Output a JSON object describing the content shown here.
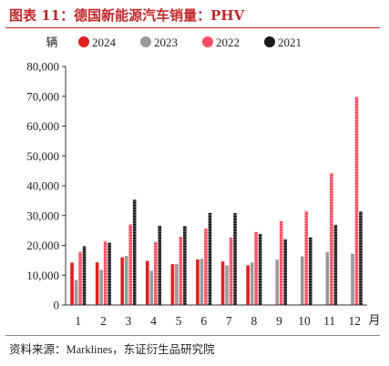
{
  "header": {
    "title": "图表 11：德国新能源汽车销量：PHV"
  },
  "footer": {
    "source": "资料来源：Marklines，东证衍生品研究院"
  },
  "chart_data": {
    "type": "bar",
    "ylabel": "辆",
    "xlabel": "月",
    "ylim": [
      0,
      80000
    ],
    "yticks": [
      0,
      10000,
      20000,
      30000,
      40000,
      50000,
      60000,
      70000,
      80000
    ],
    "ytick_labels": [
      "0",
      "10,000",
      "20,000",
      "30,000",
      "40,000",
      "50,000",
      "60,000",
      "70,000",
      "80,000"
    ],
    "categories": [
      "1",
      "2",
      "3",
      "4",
      "5",
      "6",
      "7",
      "8",
      "9",
      "10",
      "11",
      "12"
    ],
    "legend_position": "top",
    "grid": false,
    "series": [
      {
        "name": "2024",
        "color": "#e02020",
        "pattern": "solid",
        "values": [
          14200,
          14300,
          16000,
          14800,
          13700,
          15300,
          14600,
          13300,
          null,
          null,
          null,
          null
        ]
      },
      {
        "name": "2023",
        "color": "#9a9a9a",
        "pattern": "solid",
        "values": [
          8400,
          11800,
          16500,
          11500,
          13700,
          15500,
          13300,
          14200,
          15200,
          16300,
          17800,
          17200
        ]
      },
      {
        "name": "2022",
        "color": "#ff4f64",
        "pattern": "dotted",
        "values": [
          17800,
          21400,
          27000,
          21200,
          22900,
          25700,
          22600,
          24500,
          28100,
          31400,
          44200,
          69800
        ]
      },
      {
        "name": "2021",
        "color": "#1a1a1a",
        "pattern": "dotted",
        "values": [
          19700,
          20900,
          35300,
          26600,
          26500,
          30900,
          30800,
          23900,
          22100,
          22700,
          26900,
          31400
        ]
      }
    ]
  }
}
